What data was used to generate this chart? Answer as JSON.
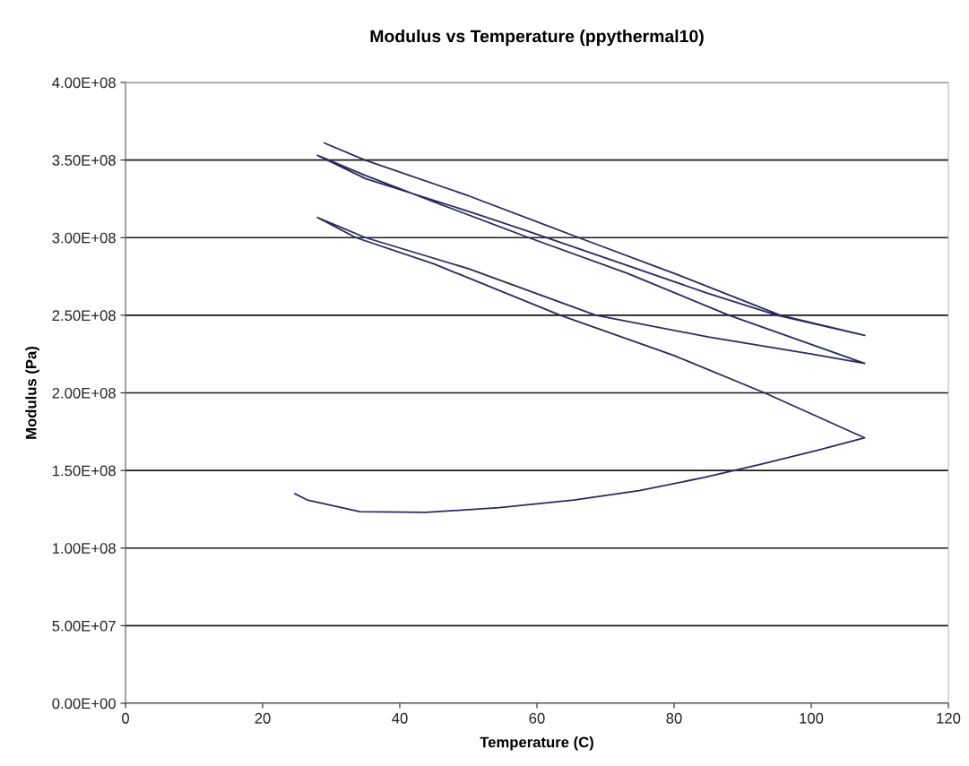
{
  "chart_data": {
    "type": "line",
    "title": "Modulus vs Temperature (ppythermal10)",
    "xlabel": "Temperature (C)",
    "ylabel": "Modulus (Pa)",
    "series": [
      {
        "color": "#2b2b5e",
        "x": [
          24.7,
          26.5,
          34.2,
          43.8,
          54.5,
          65.4,
          74.9,
          84.4,
          92.7,
          100.9,
          107.8,
          93.2,
          80,
          63.4,
          45,
          33.6,
          28,
          35,
          50,
          68.6,
          85,
          100,
          107.8,
          88,
          73.2,
          58.8,
          45,
          35,
          28,
          35,
          50,
          58.8,
          73.2,
          85,
          95,
          107.8,
          95.5,
          80,
          66.7,
          50,
          34.9,
          29
        ],
        "values": [
          135000000,
          131000000,
          123500000,
          123000000,
          126000000,
          131000000,
          137000000,
          145500000,
          154000000,
          163000000,
          171000000,
          200000000,
          224000000,
          250000000,
          283000000,
          300000000,
          313000000,
          300000000,
          280000000,
          250000000,
          236000000,
          225000000,
          219000000,
          250000000,
          277000000,
          300000000,
          323000000,
          340000000,
          353000000,
          338000000,
          317000000,
          304000000,
          282000000,
          264000000,
          250000000,
          237000000,
          250000000,
          277000000,
          299000000,
          327000000,
          350000000,
          361000000
        ]
      }
    ],
    "xlim": [
      0,
      120
    ],
    "xticks": [
      0,
      20,
      40,
      60,
      80,
      100,
      120
    ],
    "ylim": [
      0,
      400000000
    ],
    "yticks": [
      {
        "value": 0,
        "label": "0.00E+00"
      },
      {
        "value": 50000000,
        "label": "5.00E+07"
      },
      {
        "value": 100000000,
        "label": "1.00E+08"
      },
      {
        "value": 150000000,
        "label": "1.50E+08"
      },
      {
        "value": 200000000,
        "label": "2.00E+08"
      },
      {
        "value": 250000000,
        "label": "2.50E+08"
      },
      {
        "value": 300000000,
        "label": "3.00E+08"
      },
      {
        "value": 350000000,
        "label": "3.50E+08"
      },
      {
        "value": 400000000,
        "label": "4.00E+08"
      }
    ],
    "grid": "y",
    "marker": "none",
    "line_style": "solid"
  }
}
